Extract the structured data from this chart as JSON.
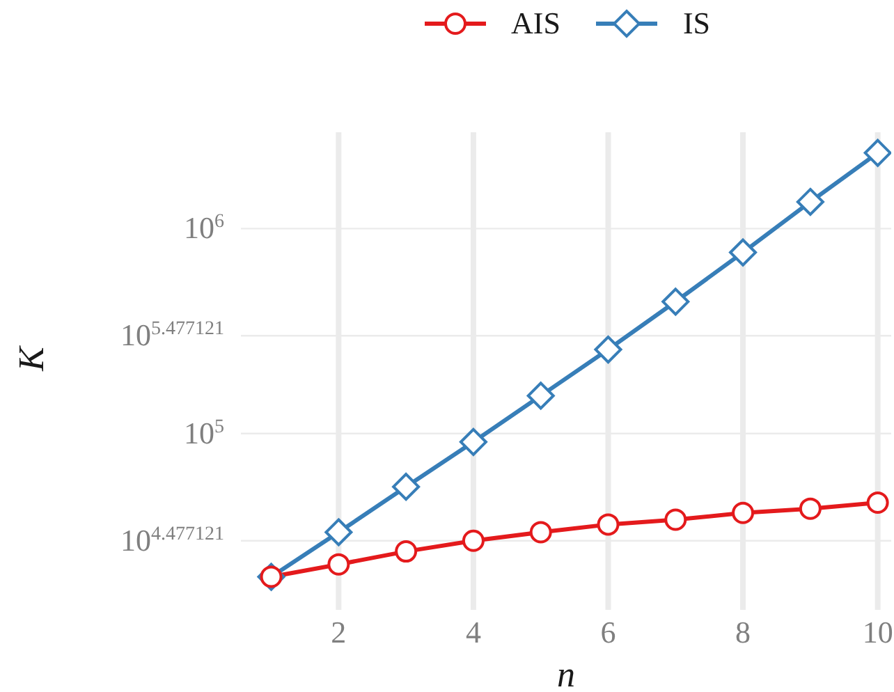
{
  "chart_data": {
    "type": "line",
    "xlabel": "n",
    "ylabel": "K",
    "log": "y",
    "grid": true,
    "legend": "top",
    "line_style": "solid",
    "x": [
      1,
      2,
      3,
      4,
      5,
      6,
      7,
      8,
      9,
      10
    ],
    "xlim": [
      0.55,
      10.2
    ],
    "xticks": [
      2,
      4,
      6,
      8,
      10
    ],
    "ylim": [
      13800,
      2950000
    ],
    "yticks": [
      {
        "value": 30000,
        "label": "10$^{4.477121}$"
      },
      {
        "value": 100000,
        "label": "10$^{5}$"
      },
      {
        "value": 300000,
        "label": "10$^{5.477121}$"
      },
      {
        "value": 1000000,
        "label": "10$^{6}$"
      }
    ],
    "series": [
      {
        "name": "AIS",
        "color": "#e41a1c",
        "marker": "circle",
        "values": [
          20000,
          23000,
          26600,
          30000,
          33000,
          36000,
          38000,
          41000,
          43000,
          46000
        ]
      },
      {
        "name": "IS",
        "color": "#377eb8",
        "marker": "diamond",
        "values": [
          20000,
          33000,
          55000,
          91000,
          153000,
          257000,
          440000,
          765000,
          1350000,
          2340000
        ]
      }
    ]
  }
}
